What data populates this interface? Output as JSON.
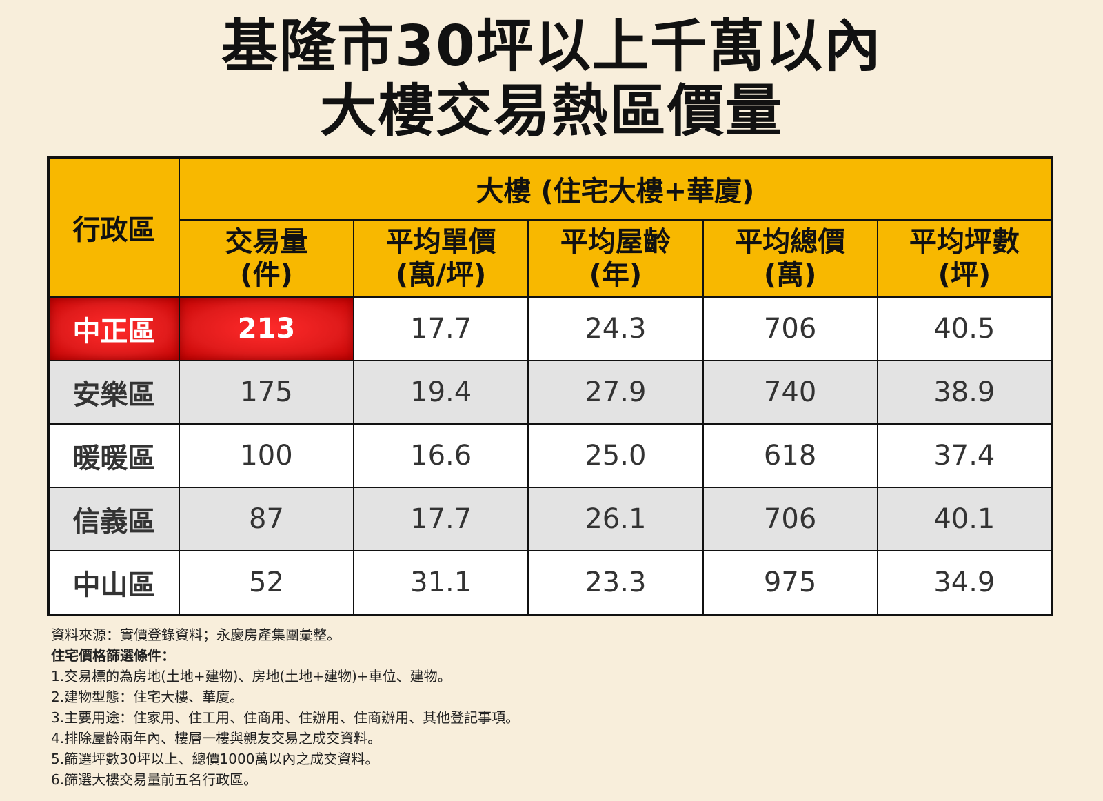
{
  "title_line1": "基隆市30坪以上千萬以內",
  "title_line2": "大樓交易熱區價量",
  "chart_data": {
    "type": "table",
    "row_header": "行政區",
    "group_header": "大樓 (住宅大樓+華廈)",
    "columns": [
      {
        "line1": "交易量",
        "line2": "(件)"
      },
      {
        "line1": "平均單價",
        "line2": "(萬/坪)"
      },
      {
        "line1": "平均屋齡",
        "line2": "(年)"
      },
      {
        "line1": "平均總價",
        "line2": "(萬)"
      },
      {
        "line1": "平均坪數",
        "line2": "(坪)"
      }
    ],
    "rows": [
      {
        "district": "中正區",
        "values": [
          "213",
          "17.7",
          "24.3",
          "706",
          "40.5"
        ]
      },
      {
        "district": "安樂區",
        "values": [
          "175",
          "19.4",
          "27.9",
          "740",
          "38.9"
        ]
      },
      {
        "district": "暖暖區",
        "values": [
          "100",
          "16.6",
          "25.0",
          "618",
          "37.4"
        ]
      },
      {
        "district": "信義區",
        "values": [
          "87",
          "17.7",
          "26.1",
          "706",
          "40.1"
        ]
      },
      {
        "district": "中山區",
        "values": [
          "52",
          "31.1",
          "23.3",
          "975",
          "34.9"
        ]
      }
    ],
    "highlight_color": "#e01b1b",
    "header_color": "#f8b800"
  },
  "notes": {
    "source": "資料來源：實價登錄資料；永慶房產集團彙整。",
    "criteria_title": "住宅價格篩選條件：",
    "items": [
      "1.交易標的為房地(土地+建物)、房地(土地+建物)+車位、建物。",
      "2.建物型態：住宅大樓、華廈。",
      "3.主要用途：住家用、住工用、住商用、住辦用、住商辦用、其他登記事項。",
      "4.排除屋齡兩年內、樓層一樓與親友交易之成交資料。",
      "5.篩選坪數30坪以上、總價1000萬以內之成交資料。",
      "6.篩選大樓交易量前五名行政區。"
    ]
  }
}
